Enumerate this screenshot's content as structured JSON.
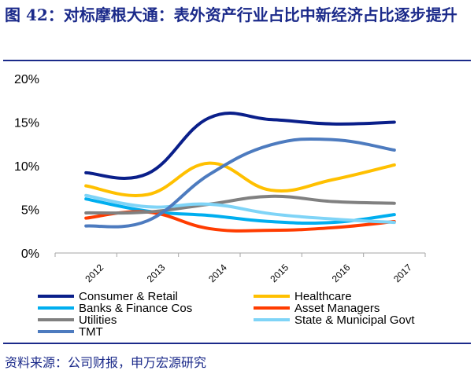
{
  "title": "图 42：对标摩根大通：表外资产行业占比中新经济占比逐步提升",
  "source": "资料来源：公司财报，申万宏源研究",
  "chart_data": {
    "type": "line",
    "categories": [
      "2012",
      "2013",
      "2014",
      "2015",
      "2016",
      "2017"
    ],
    "ylim": [
      0,
      20
    ],
    "yticks": [
      "0%",
      "5%",
      "10%",
      "15%",
      "20%"
    ],
    "ytick_values": [
      0,
      5,
      10,
      15,
      20
    ],
    "grid": false,
    "legend_position": "bottom",
    "smooth": true,
    "series": [
      {
        "name": "Consumer & Retail",
        "color": "#0a1f8a",
        "values": [
          9.2,
          9.1,
          15.5,
          15.3,
          14.8,
          15.0
        ]
      },
      {
        "name": "Healthcare",
        "color": "#ffc000",
        "values": [
          7.7,
          6.7,
          10.3,
          7.2,
          8.4,
          10.1
        ]
      },
      {
        "name": "Banks & Finance Cos",
        "color": "#00aeef",
        "values": [
          6.2,
          4.8,
          4.3,
          3.6,
          3.5,
          4.4
        ]
      },
      {
        "name": "Asset Managers",
        "color": "#ff3c00",
        "values": [
          4.0,
          4.7,
          2.8,
          2.6,
          2.9,
          3.6
        ]
      },
      {
        "name": "Utilities",
        "color": "#808080",
        "values": [
          4.6,
          4.7,
          5.6,
          6.5,
          5.9,
          5.7
        ]
      },
      {
        "name": "State & Municipal Govt",
        "color": "#7fd4f7",
        "values": [
          6.6,
          5.3,
          5.6,
          4.5,
          3.9,
          3.5
        ]
      },
      {
        "name": "TMT",
        "color": "#4d7bbf",
        "values": [
          3.1,
          3.7,
          9.0,
          12.4,
          13.0,
          11.8
        ]
      }
    ]
  }
}
